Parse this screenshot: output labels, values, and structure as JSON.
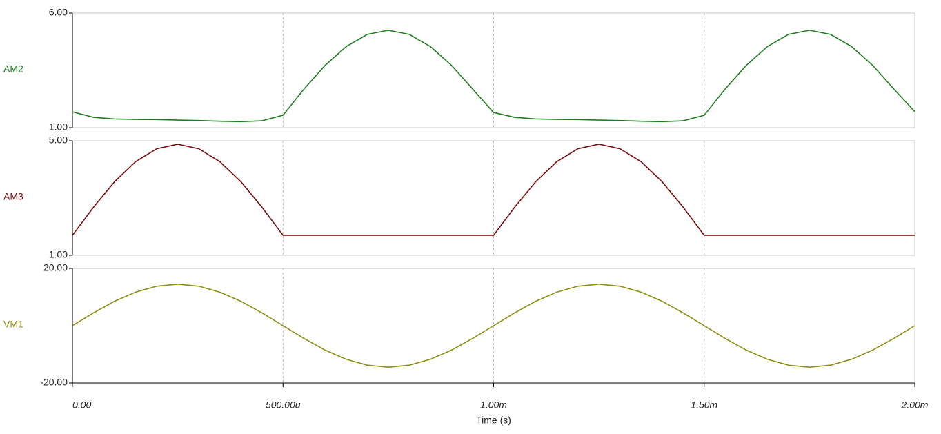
{
  "chart_data": [
    {
      "type": "line",
      "x": [
        0,
        5e-05,
        0.0001,
        0.00015,
        0.0002,
        0.00025,
        0.0003,
        0.00035,
        0.0004,
        0.00045,
        0.0005,
        0.00055,
        0.0006,
        0.00065,
        0.0007,
        0.00075,
        0.0008,
        0.00085,
        0.0009,
        0.00095,
        0.001,
        0.00105,
        0.0011,
        0.00115,
        0.0012,
        0.00125,
        0.0013,
        0.00135,
        0.0014,
        0.00145,
        0.0015,
        0.00155,
        0.0016,
        0.00165,
        0.0017,
        0.00175,
        0.0018,
        0.00185,
        0.0019,
        0.00195,
        0.002
      ],
      "series": [
        {
          "name": "AM2",
          "color": "#1e7d1e",
          "values": [
            1.69,
            1.45,
            1.38,
            1.36,
            1.35,
            1.33,
            1.31,
            1.28,
            1.26,
            1.3,
            1.54,
            2.69,
            3.72,
            4.54,
            5.07,
            5.25,
            5.07,
            4.54,
            3.72,
            2.69,
            1.66,
            1.45,
            1.38,
            1.36,
            1.35,
            1.33,
            1.31,
            1.28,
            1.26,
            1.3,
            1.54,
            2.69,
            3.72,
            4.54,
            5.07,
            5.25,
            5.07,
            4.54,
            3.72,
            2.69,
            1.7
          ]
        }
      ],
      "xlim": [
        0,
        0.002
      ],
      "ylim": [
        1,
        6
      ],
      "yticks": [
        {
          "value": 1,
          "label": "1.00"
        },
        {
          "value": 6,
          "label": "6.00"
        }
      ]
    },
    {
      "type": "line",
      "x": [
        0,
        5e-05,
        0.0001,
        0.00015,
        0.0002,
        0.00025,
        0.0003,
        0.00035,
        0.0004,
        0.00045,
        0.0005,
        0.00055,
        0.0006,
        0.00065,
        0.0007,
        0.00075,
        0.0008,
        0.00085,
        0.0009,
        0.00095,
        0.001,
        0.00105,
        0.0011,
        0.00115,
        0.0012,
        0.00125,
        0.0013,
        0.00135,
        0.0014,
        0.00145,
        0.0015,
        0.00155,
        0.0016,
        0.00165,
        0.0017,
        0.00175,
        0.0018,
        0.00185,
        0.0019,
        0.00195,
        0.002
      ],
      "series": [
        {
          "name": "AM3",
          "color": "#7a0a0a",
          "values": [
            1.7,
            2.68,
            3.57,
            4.27,
            4.72,
            4.88,
            4.72,
            4.27,
            3.57,
            2.68,
            1.7,
            1.7,
            1.7,
            1.7,
            1.7,
            1.7,
            1.7,
            1.7,
            1.7,
            1.7,
            1.7,
            2.68,
            3.57,
            4.27,
            4.72,
            4.88,
            4.72,
            4.27,
            3.57,
            2.68,
            1.7,
            1.7,
            1.7,
            1.7,
            1.7,
            1.7,
            1.7,
            1.7,
            1.7,
            1.7,
            1.7
          ]
        }
      ],
      "xlim": [
        0,
        0.002
      ],
      "ylim": [
        1,
        5
      ],
      "yticks": [
        {
          "value": 1,
          "label": "1.00"
        },
        {
          "value": 5,
          "label": "5.00"
        }
      ]
    },
    {
      "type": "line",
      "x": [
        0,
        5e-05,
        0.0001,
        0.00015,
        0.0002,
        0.00025,
        0.0003,
        0.00035,
        0.0004,
        0.00045,
        0.0005,
        0.00055,
        0.0006,
        0.00065,
        0.0007,
        0.00075,
        0.0008,
        0.00085,
        0.0009,
        0.00095,
        0.001,
        0.00105,
        0.0011,
        0.00115,
        0.0012,
        0.00125,
        0.0013,
        0.00135,
        0.0014,
        0.00145,
        0.0015,
        0.00155,
        0.0016,
        0.00165,
        0.0017,
        0.00175,
        0.0018,
        0.00185,
        0.0019,
        0.00195,
        0.002
      ],
      "series": [
        {
          "name": "VM1",
          "color": "#8c8c10",
          "values": [
            0,
            4.48,
            8.53,
            11.73,
            13.79,
            14.5,
            13.79,
            11.73,
            8.53,
            4.48,
            0,
            -4.48,
            -8.53,
            -11.73,
            -13.79,
            -14.5,
            -13.79,
            -11.73,
            -8.53,
            -4.48,
            0,
            4.48,
            8.53,
            11.73,
            13.79,
            14.5,
            13.79,
            11.73,
            8.53,
            4.48,
            0,
            -4.48,
            -8.53,
            -11.73,
            -13.79,
            -14.5,
            -13.79,
            -11.73,
            -8.53,
            -4.48,
            0
          ]
        }
      ],
      "xlim": [
        0,
        0.002
      ],
      "ylim": [
        -20,
        20
      ],
      "yticks": [
        {
          "value": -20,
          "label": "-20.00"
        },
        {
          "value": 20,
          "label": "20.00"
        }
      ],
      "xlabel": "Time (s)",
      "xticks": [
        {
          "value": 0,
          "label": "0.00"
        },
        {
          "value": 0.0005,
          "label": "500.00u"
        },
        {
          "value": 0.001,
          "label": "1.00m"
        },
        {
          "value": 0.0015,
          "label": "1.50m"
        },
        {
          "value": 0.002,
          "label": "2.00m"
        }
      ]
    }
  ]
}
